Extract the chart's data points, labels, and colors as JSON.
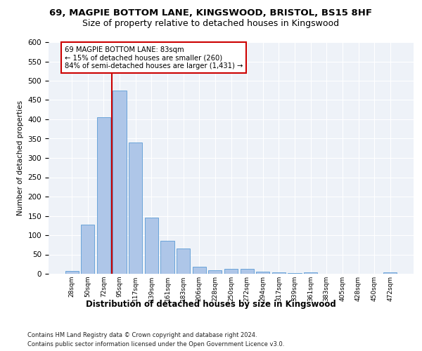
{
  "title1": "69, MAGPIE BOTTOM LANE, KINGSWOOD, BRISTOL, BS15 8HF",
  "title2": "Size of property relative to detached houses in Kingswood",
  "xlabel": "Distribution of detached houses by size in Kingswood",
  "ylabel": "Number of detached properties",
  "categories": [
    "28sqm",
    "50sqm",
    "72sqm",
    "95sqm",
    "117sqm",
    "139sqm",
    "161sqm",
    "183sqm",
    "206sqm",
    "228sqm",
    "250sqm",
    "272sqm",
    "294sqm",
    "317sqm",
    "339sqm",
    "361sqm",
    "383sqm",
    "405sqm",
    "428sqm",
    "450sqm",
    "472sqm"
  ],
  "values": [
    8,
    128,
    405,
    475,
    340,
    145,
    85,
    65,
    18,
    10,
    13,
    13,
    6,
    4,
    1,
    3,
    0,
    0,
    0,
    0,
    3
  ],
  "bar_color": "#aec6e8",
  "bar_edgecolor": "#5b9bd5",
  "vline_x": 2.5,
  "vline_color": "#cc0000",
  "annotation_text": "69 MAGPIE BOTTOM LANE: 83sqm\n← 15% of detached houses are smaller (260)\n84% of semi-detached houses are larger (1,431) →",
  "annotation_box_color": "#ffffff",
  "annotation_box_edgecolor": "#cc0000",
  "ylim": [
    0,
    600
  ],
  "yticks": [
    0,
    50,
    100,
    150,
    200,
    250,
    300,
    350,
    400,
    450,
    500,
    550,
    600
  ],
  "footer1": "Contains HM Land Registry data © Crown copyright and database right 2024.",
  "footer2": "Contains public sector information licensed under the Open Government Licence v3.0.",
  "bg_color": "#eef2f8",
  "title1_fontsize": 9.5,
  "title2_fontsize": 9
}
